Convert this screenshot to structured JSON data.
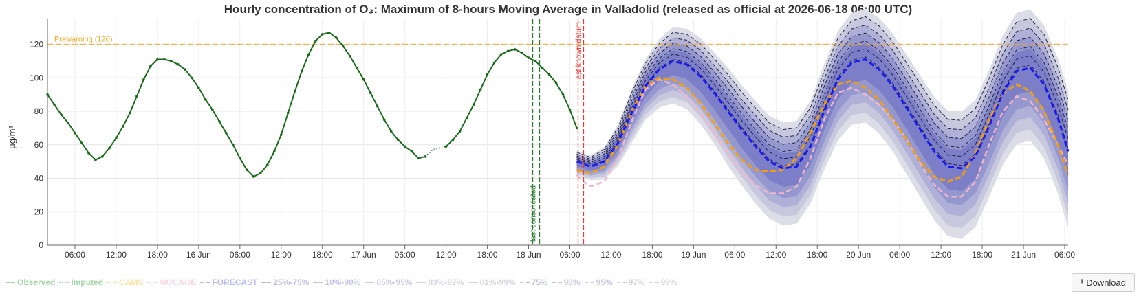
{
  "chart_data": {
    "type": "line",
    "title": "Hourly concentration of O₃: Maximum of 8-hours Moving Average in Valladolid (released as official at 2026-06-18 06:00 UTC)",
    "ylabel": "µg/m³",
    "ylim": [
      0,
      135
    ],
    "yticks": [
      0,
      20,
      40,
      60,
      80,
      100,
      120
    ],
    "x_unit": "hours since 2026-06-15 00:00 UTC (axis)",
    "xlim": [
      2,
      150.5
    ],
    "xticks": [
      {
        "h": 6,
        "label": "06:00"
      },
      {
        "h": 12,
        "label": "12:00"
      },
      {
        "h": 18,
        "label": "18:00"
      },
      {
        "h": 24,
        "label": "16 Jun"
      },
      {
        "h": 30,
        "label": "06:00"
      },
      {
        "h": 36,
        "label": "12:00"
      },
      {
        "h": 42,
        "label": "18:00"
      },
      {
        "h": 48,
        "label": "17 Jun"
      },
      {
        "h": 54,
        "label": "06:00"
      },
      {
        "h": 60,
        "label": "12:00"
      },
      {
        "h": 66,
        "label": "18:00"
      },
      {
        "h": 72,
        "label": "18 Jun"
      },
      {
        "h": 78,
        "label": "06:00"
      },
      {
        "h": 84,
        "label": "12:00"
      },
      {
        "h": 90,
        "label": "18:00"
      },
      {
        "h": 96,
        "label": "19 Jun"
      },
      {
        "h": 102,
        "label": "06:00"
      },
      {
        "h": 108,
        "label": "12:00"
      },
      {
        "h": 114,
        "label": "18:00"
      },
      {
        "h": 120,
        "label": "20 Jun"
      },
      {
        "h": 126,
        "label": "06:00"
      },
      {
        "h": 132,
        "label": "12:00"
      },
      {
        "h": 138,
        "label": "18:00"
      },
      {
        "h": 144,
        "label": "21 Jun"
      },
      {
        "h": 150,
        "label": "06:00"
      }
    ],
    "threshold": {
      "label": "Prewarning (120)",
      "value": 120,
      "color": "#f5a623"
    },
    "vlines": [
      {
        "h": 72.6,
        "label": "last consolidated",
        "color": "#2e7d32"
      },
      {
        "h": 73.6,
        "label": "",
        "color": "#2e7d32"
      },
      {
        "h": 79.2,
        "label": "last known datum",
        "color": "#e53935"
      },
      {
        "h": 80.0,
        "label": "",
        "color": "#e53935"
      }
    ],
    "observed": {
      "name": "Observed",
      "color": "#1b6a1b",
      "x": [
        2,
        3,
        4,
        5,
        6,
        7,
        8,
        9,
        10,
        11,
        12,
        13,
        14,
        15,
        16,
        17,
        18,
        19,
        20,
        21,
        22,
        23,
        24,
        25,
        26,
        27,
        28,
        29,
        30,
        31,
        32,
        33,
        34,
        35,
        36,
        37,
        38,
        39,
        40,
        41,
        42,
        43,
        44,
        45,
        46,
        47,
        48,
        49,
        50,
        51,
        52,
        53,
        54,
        55,
        56,
        57
      ],
      "y": [
        90,
        84,
        78,
        73,
        67,
        61,
        55,
        51,
        53,
        58,
        64,
        71,
        79,
        89,
        99,
        107,
        111,
        111,
        110,
        108,
        105,
        100,
        94,
        87,
        81,
        74,
        67,
        60,
        52,
        45,
        41,
        43,
        48,
        56,
        66,
        79,
        92,
        104,
        114,
        122,
        126,
        127,
        124,
        119,
        113,
        106,
        99,
        91,
        83,
        75,
        68,
        63,
        59,
        56,
        52,
        53
      ]
    },
    "observed2": {
      "x": [
        60,
        61,
        62,
        63,
        64,
        65,
        66,
        67,
        68,
        69,
        70,
        71,
        72,
        73,
        74,
        75,
        76,
        77,
        78,
        79
      ],
      "y": [
        59,
        63,
        68,
        76,
        84,
        93,
        102,
        109,
        114,
        116,
        117,
        115,
        112,
        110,
        106,
        102,
        97,
        90,
        81,
        70
      ]
    },
    "imputed": {
      "name": "Imputed",
      "color": "#1b6a1b",
      "x": [
        57,
        58,
        59,
        60
      ],
      "y": [
        53,
        57,
        58,
        59
      ]
    },
    "forecast": {
      "name": "FORECAST",
      "color": "#1a1aee",
      "x": [
        79,
        81,
        83,
        85,
        87,
        89,
        91,
        93,
        95,
        97,
        99,
        101,
        103,
        105,
        107,
        109,
        111,
        113,
        115,
        117,
        119,
        121,
        123,
        125,
        127,
        129,
        131,
        133,
        135,
        137,
        139,
        141,
        143,
        145,
        147,
        149,
        150.5
      ],
      "median": [
        50,
        47,
        50,
        61,
        79,
        95,
        105,
        110,
        108,
        101,
        91,
        80,
        69,
        59,
        50,
        46,
        47,
        59,
        80,
        99,
        109,
        111,
        105,
        95,
        82,
        69,
        56,
        47,
        46,
        53,
        71,
        91,
        104,
        106,
        96,
        76,
        56
      ],
      "width_scale": [
        0.25,
        0.25,
        0.33,
        0.42,
        0.55,
        0.62,
        0.7,
        0.78,
        0.82,
        0.88,
        0.93,
        1.0,
        1.02,
        1.05,
        1.05,
        1.05,
        1.05,
        1.05,
        1.08,
        1.12,
        1.14,
        1.16,
        1.18,
        1.2,
        1.22,
        1.24,
        1.26,
        1.28,
        1.3,
        1.3,
        1.3,
        1.32,
        1.34,
        1.34,
        1.36,
        1.38,
        1.4
      ],
      "dashed_quantiles": [
        1.3,
        5.4,
        9.5,
        13.6,
        17.7,
        22.0
      ],
      "bands": [
        {
          "name": "01%-99%",
          "half": 26.0,
          "color": "#dcdde6"
        },
        {
          "name": "03%-97%",
          "half": 22.0,
          "color": "#c7c8dd"
        },
        {
          "name": "05%-95%",
          "half": 17.7,
          "color": "#aeb0d8"
        },
        {
          "name": "10%-90%",
          "half": 13.6,
          "color": "#9597cf"
        },
        {
          "name": "25%-75%",
          "half": 8.4,
          "color": "#7c7ec8"
        }
      ]
    },
    "cams": {
      "name": "CAMS",
      "color": "#f59e0b",
      "x": [
        79,
        81,
        83,
        85,
        87,
        89,
        91,
        93,
        95,
        97,
        99,
        101,
        103,
        105,
        107,
        109,
        111,
        113,
        115,
        117,
        119,
        121,
        123,
        125,
        127,
        129,
        131,
        133,
        135,
        137,
        139,
        141,
        143,
        145,
        147,
        149,
        150.5
      ],
      "y": [
        45,
        43,
        47,
        60,
        80,
        95,
        100,
        99,
        94,
        85,
        73,
        61,
        51,
        45,
        44,
        45,
        52,
        67,
        84,
        96,
        98,
        94,
        87,
        75,
        63,
        50,
        41,
        38,
        41,
        55,
        75,
        91,
        96,
        92,
        80,
        60,
        42
      ]
    },
    "mocage": {
      "name": "MOCAGE",
      "color": "#f4b6c8",
      "x": [
        79,
        80,
        81,
        83,
        85,
        87,
        89,
        91,
        93,
        95,
        97,
        99,
        101,
        103,
        105,
        107,
        109,
        111,
        113,
        115,
        117,
        119,
        121,
        123,
        125,
        127,
        129,
        131,
        133,
        135,
        137,
        139,
        141,
        143,
        145,
        147,
        149,
        150.5
      ],
      "y": [
        42,
        38,
        35,
        38,
        52,
        74,
        93,
        99,
        96,
        89,
        79,
        67,
        55,
        44,
        36,
        31,
        31,
        35,
        52,
        75,
        91,
        94,
        90,
        84,
        75,
        63,
        49,
        36,
        29,
        29,
        38,
        60,
        80,
        89,
        86,
        75,
        60,
        48
      ]
    }
  },
  "legend": [
    {
      "label": "Observed",
      "color": "#a5d6a7",
      "style": "solid"
    },
    {
      "label": "Imputed",
      "color": "#a5d6a7",
      "style": "dotted"
    },
    {
      "label": "CAMS",
      "color": "#ffe0a3",
      "style": "dashed"
    },
    {
      "label": "MOCAGE",
      "color": "#f8d7e2",
      "style": "dashed"
    },
    {
      "label": "FORECAST",
      "color": "#b9bbf3",
      "style": "dashed"
    },
    {
      "label": "25%-75%",
      "color": "#bdbee2",
      "style": "solid"
    },
    {
      "label": "10%-90%",
      "color": "#c3c4e3",
      "style": "solid"
    },
    {
      "label": "05%-95%",
      "color": "#cacbe6",
      "style": "solid"
    },
    {
      "label": "03%-97%",
      "color": "#d3d3e6",
      "style": "solid"
    },
    {
      "label": "01%-99%",
      "color": "#d6d6de",
      "style": "solid"
    },
    {
      "label": "75%",
      "color": "#bfc0e3",
      "style": "dashed"
    },
    {
      "label": "90%",
      "color": "#c3c4e3",
      "style": "dashed"
    },
    {
      "label": "95%",
      "color": "#c8c9e4",
      "style": "dashed"
    },
    {
      "label": "97%",
      "color": "#cfd0e2",
      "style": "dashed"
    },
    {
      "label": "99%",
      "color": "#d4d4dc",
      "style": "dashed"
    }
  ],
  "download": {
    "label": "Download",
    "icon": "download-icon"
  }
}
